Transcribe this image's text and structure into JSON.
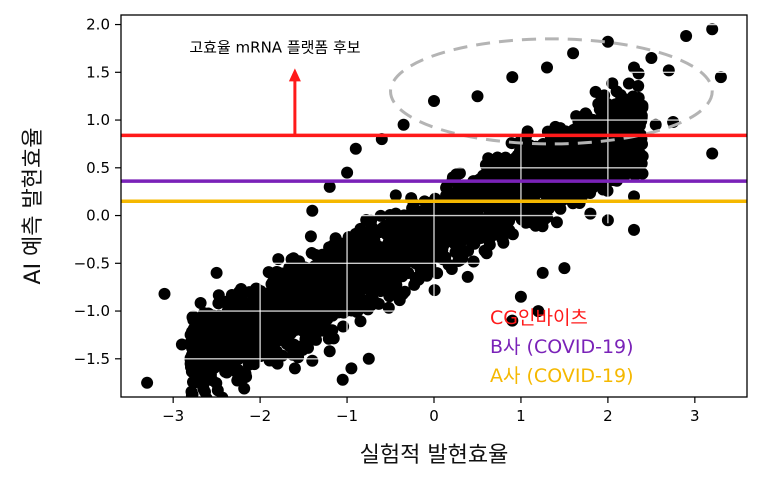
{
  "chart_data": {
    "type": "scatter",
    "title": "",
    "xlabel": "실험적 발현효율",
    "ylabel": "AI 예측 발현효율",
    "xlim": [
      -3.6,
      3.6
    ],
    "ylim": [
      -1.9,
      2.1
    ],
    "x_ticks": [
      -3,
      -2,
      -1,
      0,
      1,
      2,
      3
    ],
    "x_tick_labels": [
      "−3",
      "−2",
      "−1",
      "0",
      "1",
      "2",
      "3"
    ],
    "y_ticks": [
      -1.5,
      -1.0,
      -0.5,
      0.0,
      0.5,
      1.0,
      1.5,
      2.0
    ],
    "y_tick_labels": [
      "−1.5",
      "−1.0",
      "−0.5",
      "0.0",
      "0.5",
      "1.0",
      "1.5",
      "2.0"
    ],
    "grid": false,
    "marker_color": "#000000",
    "point_cloud": {
      "trend": {
        "slope": 0.47,
        "intercept": -0.17
      },
      "x_range": [
        -2.8,
        2.4
      ],
      "count": 2600
    },
    "outliers": [
      [
        -3.3,
        -1.75
      ],
      [
        -3.1,
        -0.82
      ],
      [
        -2.8,
        -1.25
      ],
      [
        -2.6,
        -1.2
      ],
      [
        -2.9,
        -1.35
      ],
      [
        -2.2,
        -1.42
      ],
      [
        -2.0,
        -1.45
      ],
      [
        -1.8,
        -1.55
      ],
      [
        -1.6,
        -1.6
      ],
      [
        -1.4,
        -1.52
      ],
      [
        -1.05,
        -1.72
      ],
      [
        -0.95,
        -1.6
      ],
      [
        -2.5,
        -0.6
      ],
      [
        -1.6,
        -0.5
      ],
      [
        -1.9,
        -0.9
      ],
      [
        -1.4,
        0.05
      ],
      [
        -1.2,
        0.3
      ],
      [
        -1.0,
        0.45
      ],
      [
        -0.9,
        0.7
      ],
      [
        -0.6,
        0.8
      ],
      [
        -0.35,
        0.95
      ],
      [
        0.0,
        1.2
      ],
      [
        0.5,
        1.25
      ],
      [
        0.9,
        1.45
      ],
      [
        1.3,
        1.55
      ],
      [
        1.6,
        1.7
      ],
      [
        2.0,
        1.82
      ],
      [
        2.1,
        1.3
      ],
      [
        2.3,
        1.55
      ],
      [
        2.5,
        1.65
      ],
      [
        2.7,
        1.52
      ],
      [
        2.9,
        1.88
      ],
      [
        3.2,
        1.95
      ],
      [
        3.3,
        1.45
      ],
      [
        3.2,
        0.65
      ],
      [
        2.55,
        0.95
      ],
      [
        2.75,
        0.98
      ],
      [
        2.35,
        1.0
      ],
      [
        2.0,
        -0.05
      ],
      [
        2.3,
        0.2
      ],
      [
        2.2,
        0.45
      ],
      [
        2.4,
        0.62
      ],
      [
        1.2,
        -1.0
      ],
      [
        1.0,
        -0.85
      ],
      [
        1.5,
        -0.55
      ],
      [
        1.25,
        -0.6
      ],
      [
        0.9,
        -1.1
      ],
      [
        2.3,
        -0.15
      ],
      [
        -0.75,
        -1.5
      ],
      [
        -1.2,
        -1.42
      ]
    ],
    "ellipse": {
      "cx": 1.35,
      "cy": 1.3,
      "rx": 1.85,
      "ry": 0.55,
      "color": "#b4b4b4"
    },
    "hlines": [
      {
        "name": "CG인바이츠",
        "y": 0.84,
        "color": "#ff1a1a"
      },
      {
        "name": "B사 (COVID-19)",
        "y": 0.36,
        "color": "#7a22b8"
      },
      {
        "name": "A사 (COVID-19)",
        "y": 0.15,
        "color": "#f5b800"
      }
    ],
    "legend_placement": "lower-right",
    "annotation": {
      "text": "고효율 mRNA 플랫폼 후보",
      "arrow_from": [
        -1.6,
        0.84
      ],
      "arrow_to": [
        -1.6,
        1.52
      ],
      "color": "#ff1a1a"
    }
  }
}
